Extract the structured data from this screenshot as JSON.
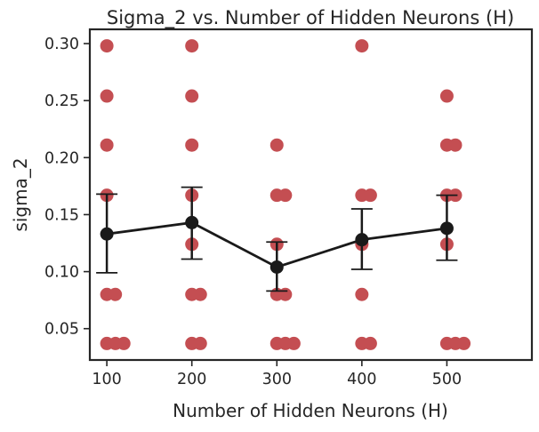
{
  "chart_data": {
    "type": "scatter",
    "title": "Sigma_2 vs. Number of Hidden Neurons (H)",
    "xlabel": "Number of Hidden Neurons (H)",
    "ylabel": "sigma_2",
    "xlim": [
      80,
      600
    ],
    "ylim": [
      0.0225,
      0.3125
    ],
    "xticks": [
      100,
      200,
      300,
      400,
      500
    ],
    "xtick_labels": [
      "100",
      "200",
      "300",
      "400",
      "500"
    ],
    "yticks": [
      0.05,
      0.1,
      0.15,
      0.2,
      0.25,
      0.3
    ],
    "ytick_labels": [
      "0.05",
      "0.10",
      "0.15",
      "0.20",
      "0.25",
      "0.30"
    ],
    "grid": false,
    "legend": "none",
    "series": [
      {
        "style": "scatter",
        "color": "#c44e52",
        "points": [
          {
            "x": 100,
            "y": 0.298
          },
          {
            "x": 100,
            "y": 0.254
          },
          {
            "x": 100,
            "y": 0.211
          },
          {
            "x": 100,
            "y": 0.167
          },
          {
            "x": 100,
            "y": 0.08
          },
          {
            "x": 110,
            "y": 0.08
          },
          {
            "x": 100,
            "y": 0.037
          },
          {
            "x": 110,
            "y": 0.037
          },
          {
            "x": 120,
            "y": 0.037
          },
          {
            "x": 200,
            "y": 0.298
          },
          {
            "x": 200,
            "y": 0.254
          },
          {
            "x": 200,
            "y": 0.211
          },
          {
            "x": 200,
            "y": 0.167
          },
          {
            "x": 200,
            "y": 0.124
          },
          {
            "x": 200,
            "y": 0.08
          },
          {
            "x": 210,
            "y": 0.08
          },
          {
            "x": 200,
            "y": 0.037
          },
          {
            "x": 210,
            "y": 0.037
          },
          {
            "x": 300,
            "y": 0.211
          },
          {
            "x": 300,
            "y": 0.167
          },
          {
            "x": 310,
            "y": 0.167
          },
          {
            "x": 300,
            "y": 0.124
          },
          {
            "x": 300,
            "y": 0.08
          },
          {
            "x": 310,
            "y": 0.08
          },
          {
            "x": 300,
            "y": 0.037
          },
          {
            "x": 310,
            "y": 0.037
          },
          {
            "x": 320,
            "y": 0.037
          },
          {
            "x": 400,
            "y": 0.298
          },
          {
            "x": 400,
            "y": 0.167
          },
          {
            "x": 410,
            "y": 0.167
          },
          {
            "x": 400,
            "y": 0.124
          },
          {
            "x": 400,
            "y": 0.08
          },
          {
            "x": 400,
            "y": 0.037
          },
          {
            "x": 410,
            "y": 0.037
          },
          {
            "x": 500,
            "y": 0.254
          },
          {
            "x": 500,
            "y": 0.211
          },
          {
            "x": 510,
            "y": 0.211
          },
          {
            "x": 500,
            "y": 0.167
          },
          {
            "x": 510,
            "y": 0.167
          },
          {
            "x": 500,
            "y": 0.124
          },
          {
            "x": 500,
            "y": 0.037
          },
          {
            "x": 510,
            "y": 0.037
          },
          {
            "x": 520,
            "y": 0.037
          }
        ]
      },
      {
        "style": "line-errorbar",
        "color": "#1a1a1a",
        "x": [
          100,
          200,
          300,
          400,
          500
        ],
        "y": [
          0.133,
          0.143,
          0.104,
          0.128,
          0.138
        ],
        "err_low": [
          0.099,
          0.111,
          0.083,
          0.102,
          0.11
        ],
        "err_high": [
          0.168,
          0.174,
          0.126,
          0.155,
          0.167
        ]
      }
    ]
  }
}
